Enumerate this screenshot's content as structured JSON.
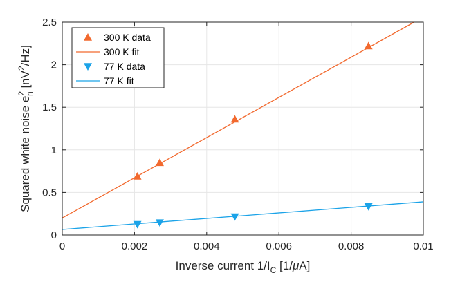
{
  "chart_data": {
    "type": "scatter",
    "xlabel": {
      "main": "Inverse current 1/I",
      "sub": "C",
      "rest": " [1/",
      "mu": "μ",
      "unit_end": "A]"
    },
    "ylabel": {
      "main": "Squared  white noise e",
      "sup": "2",
      "sub": "n",
      "rest": " [nV",
      "sup2": "2",
      "unit_end": "/Hz]"
    },
    "xlim": [
      0,
      0.01
    ],
    "ylim": [
      0,
      2.5
    ],
    "x_ticks": [
      0,
      0.002,
      0.004,
      0.006,
      0.008,
      0.01
    ],
    "x_tick_labels": [
      "0",
      "0.002",
      "0.004",
      "0.006",
      "0.008",
      "0.01"
    ],
    "y_ticks": [
      0,
      0.5,
      1,
      1.5,
      2,
      2.5
    ],
    "y_tick_labels": [
      "0",
      "0.5",
      "1",
      "1.5",
      "2",
      "2.5"
    ],
    "grid": true,
    "legend_position": "top-left",
    "series": [
      {
        "name": "300 K data",
        "kind": "markers",
        "marker": "triangle-up",
        "color": "#F2692E",
        "x": [
          0.00208,
          0.0027,
          0.00478,
          0.00848
        ],
        "y": [
          0.69,
          0.85,
          1.36,
          2.22
        ]
      },
      {
        "name": "300 K fit",
        "kind": "line",
        "color": "#F2692E",
        "intercept": 0.2,
        "slope": 236
      },
      {
        "name": "77 K data",
        "kind": "markers",
        "marker": "triangle-down",
        "color": "#1BA3E8",
        "x": [
          0.00208,
          0.0027,
          0.00478,
          0.00848
        ],
        "y": [
          0.125,
          0.145,
          0.215,
          0.335
        ]
      },
      {
        "name": "77 K fit",
        "kind": "line",
        "color": "#1BA3E8",
        "intercept": 0.065,
        "slope": 32.5
      }
    ]
  }
}
